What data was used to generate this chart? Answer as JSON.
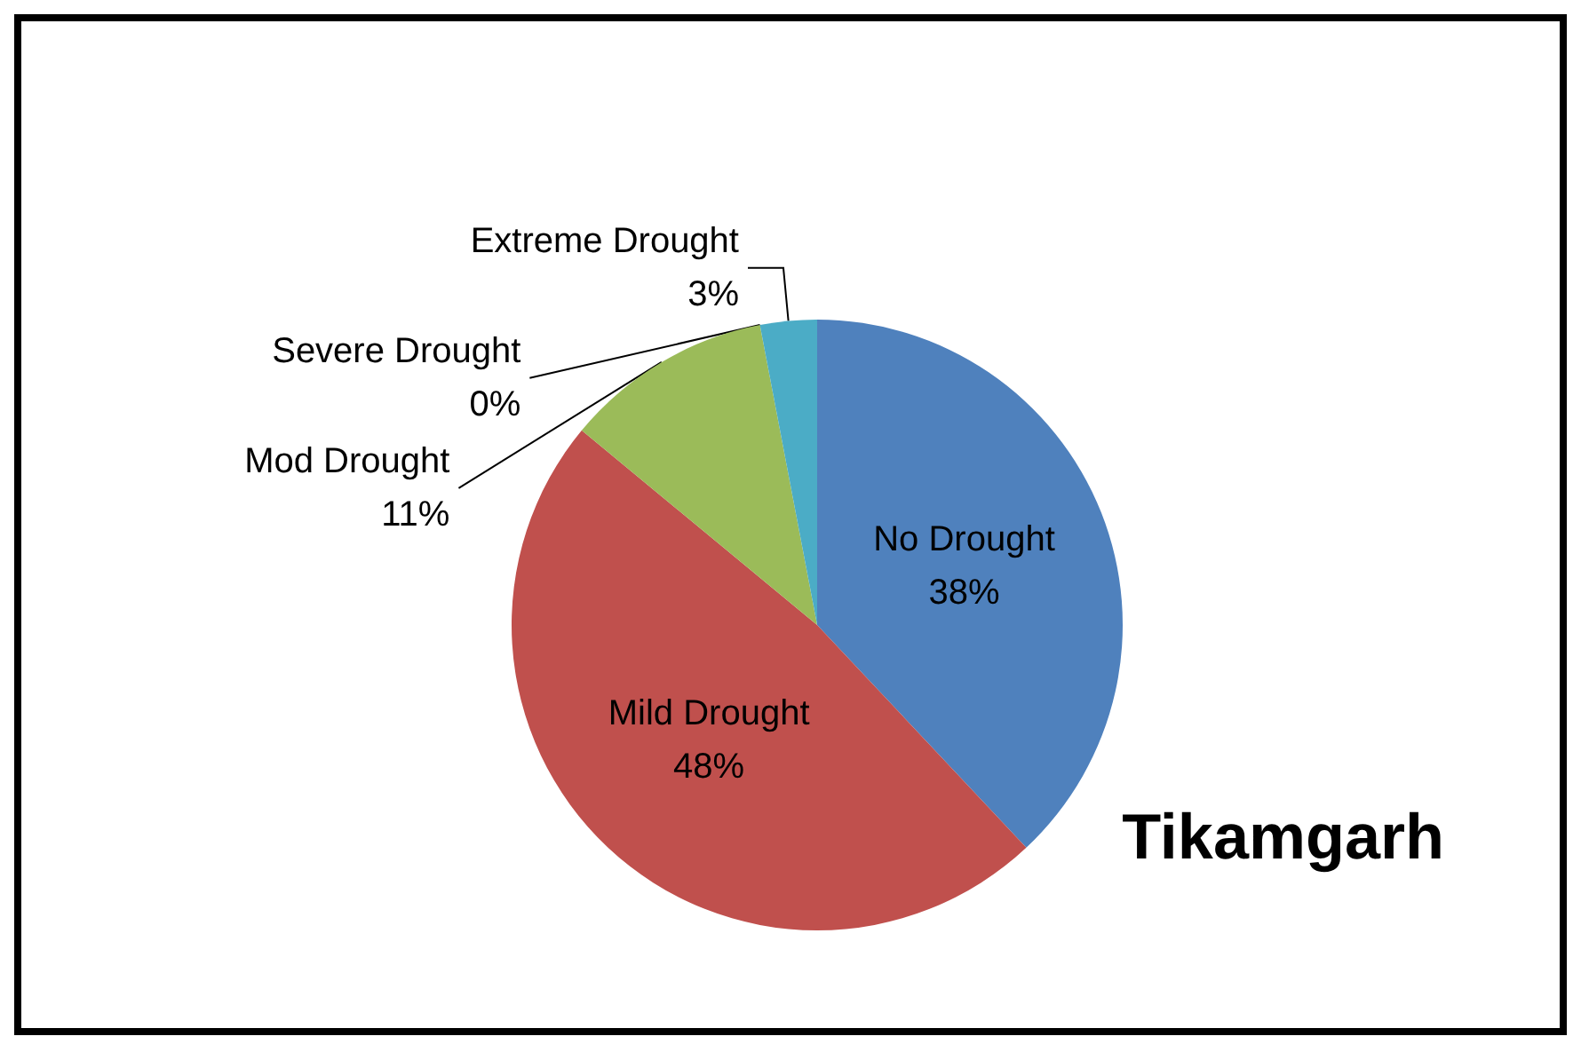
{
  "chart_data": {
    "type": "pie",
    "title": "Tikamgarh",
    "categories": [
      "No Drought",
      "Mild Drought",
      "Mod Drought",
      "Severe Drought",
      "Extreme Drought"
    ],
    "values": [
      38,
      48,
      11,
      0,
      3
    ],
    "value_labels": [
      "38%",
      "48%",
      "11%",
      "0%",
      "3%"
    ],
    "colors": [
      "#4f81bd",
      "#c0504d",
      "#9bbb59",
      "#8064a2",
      "#4bacc6"
    ],
    "legend": false
  }
}
